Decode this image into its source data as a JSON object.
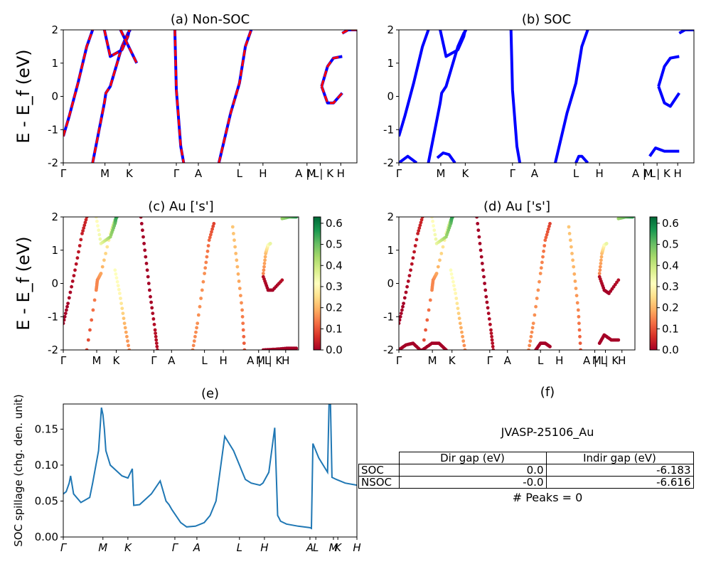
{
  "chart_data": [
    {
      "type": "line",
      "title": "(a) Non-SOC",
      "ylabel": "E - E_f (eV)",
      "ylim": [
        -2,
        2
      ],
      "yticks": [
        "-2",
        "-1",
        "0",
        "1",
        "2"
      ],
      "xticks": [
        "Γ",
        "M",
        "K",
        "Γ",
        "A",
        "L",
        "H",
        "A | L",
        "M | K",
        "H"
      ],
      "series": [
        {
          "style": "solid",
          "color": "#0000ff"
        },
        {
          "style": "dashed",
          "color": "#ff0000"
        }
      ],
      "bands": [
        {
          "x": [
            0,
            0.02,
            0.05,
            0.08,
            0.1
          ],
          "y": [
            -1.2,
            -0.6,
            0.4,
            1.5,
            2.0
          ]
        },
        {
          "x": [
            0.1,
            0.14,
            0.145,
            0.16,
            0.2,
            0.22,
            0.228
          ],
          "y": [
            -2.0,
            -0.2,
            0.1,
            0.3,
            1.5,
            1.9,
            2.0
          ]
        },
        {
          "x": [
            0.14,
            0.16,
            0.2,
            0.22,
            0.225
          ],
          "y": [
            2.0,
            1.2,
            1.4,
            1.8,
            2.0
          ]
        },
        {
          "x": [
            0.195,
            0.25
          ],
          "y": [
            2.0,
            1.0
          ]
        },
        {
          "x": [
            0.38,
            0.385,
            0.4,
            0.41
          ],
          "y": [
            2.0,
            0.2,
            -1.5,
            -2.0
          ]
        },
        {
          "x": [
            0.53,
            0.57,
            0.6,
            0.62,
            0.64
          ],
          "y": [
            -2.0,
            -0.5,
            0.4,
            1.5,
            2.0
          ]
        },
        {
          "x": [
            0.88,
            0.9,
            0.92,
            0.95
          ],
          "y": [
            0.3,
            0.9,
            1.15,
            1.2
          ]
        },
        {
          "x": [
            0.88,
            0.9,
            0.92,
            0.95
          ],
          "y": [
            0.3,
            -0.2,
            -0.2,
            0.1
          ]
        },
        {
          "x": [
            0.95,
            0.97,
            1.0
          ],
          "y": [
            1.9,
            2.0,
            2.0
          ]
        }
      ]
    },
    {
      "type": "line",
      "title": "(b) SOC",
      "ylim": [
        -2,
        2
      ],
      "yticks": [
        "-2",
        "-1",
        "0",
        "1",
        "2"
      ],
      "xticks": [
        "Γ",
        "M",
        "K",
        "Γ",
        "A",
        "L",
        "H",
        "A | L",
        "M | K",
        "H"
      ],
      "series": [
        {
          "style": "solid",
          "color": "#0000ff"
        }
      ],
      "bands": [
        {
          "x": [
            0,
            0.02,
            0.05,
            0.08,
            0.1
          ],
          "y": [
            -1.2,
            -0.6,
            0.4,
            1.5,
            2.0
          ]
        },
        {
          "x": [
            0.1,
            0.14,
            0.145,
            0.16,
            0.2,
            0.22,
            0.228
          ],
          "y": [
            -2.0,
            -0.2,
            0.1,
            0.3,
            1.5,
            1.9,
            2.0
          ]
        },
        {
          "x": [
            0.14,
            0.16,
            0.2,
            0.22,
            0.225
          ],
          "y": [
            2.0,
            1.2,
            1.4,
            1.8,
            2.0
          ]
        },
        {
          "x": [
            0.38,
            0.385,
            0.4,
            0.41
          ],
          "y": [
            2.0,
            0.2,
            -1.5,
            -2.0
          ]
        },
        {
          "x": [
            0.53,
            0.57,
            0.6,
            0.62,
            0.64
          ],
          "y": [
            -2.0,
            -0.5,
            0.4,
            1.5,
            2.0
          ]
        },
        {
          "x": [
            0.88,
            0.9,
            0.92,
            0.95
          ],
          "y": [
            0.3,
            0.9,
            1.15,
            1.2
          ]
        },
        {
          "x": [
            0.88,
            0.9,
            0.92,
            0.95
          ],
          "y": [
            0.3,
            -0.2,
            -0.3,
            0.1
          ]
        },
        {
          "x": [
            0.95,
            0.97,
            1.0
          ],
          "y": [
            1.9,
            2.0,
            2.0
          ]
        },
        {
          "x": [
            0.13,
            0.15,
            0.17,
            0.19
          ],
          "y": [
            -1.85,
            -1.7,
            -1.75,
            -2.0
          ]
        },
        {
          "x": [
            0.0,
            0.03,
            0.06
          ],
          "y": [
            -2.0,
            -1.8,
            -2.0
          ]
        },
        {
          "x": [
            0.6,
            0.61,
            0.62,
            0.64
          ],
          "y": [
            -2.0,
            -1.8,
            -1.8,
            -2.0
          ]
        },
        {
          "x": [
            0.85,
            0.87,
            0.9,
            0.95
          ],
          "y": [
            -1.8,
            -1.55,
            -1.65,
            -1.65
          ]
        }
      ]
    },
    {
      "type": "scatter",
      "title": "(c)  Au ['s']",
      "ylabel": "E - E_f (eV)",
      "ylim": [
        -2,
        2
      ],
      "yticks": [
        "-2",
        "-1",
        "0",
        "1",
        "2"
      ],
      "xticks": [
        "Γ",
        "M",
        "K",
        "Γ",
        "A",
        "L",
        "H",
        "A | L",
        "M | K",
        "H"
      ],
      "colorbar": {
        "min": 0.0,
        "max": 0.63,
        "ticks": [
          "0.0",
          "0.1",
          "0.2",
          "0.3",
          "0.4",
          "0.5",
          "0.6"
        ],
        "colormap": "RdYlGn"
      },
      "bands": [
        {
          "x": [
            0,
            0.02,
            0.05,
            0.08,
            0.1
          ],
          "y": [
            -1.2,
            -0.6,
            0.4,
            1.5,
            2.0
          ],
          "w": [
            0.0,
            0.0,
            0.02,
            0.04,
            0.05
          ]
        },
        {
          "x": [
            0.1,
            0.14,
            0.145,
            0.16,
            0.2,
            0.22,
            0.228
          ],
          "y": [
            -2.0,
            -0.2,
            0.1,
            0.3,
            1.5,
            1.9,
            2.0
          ],
          "w": [
            0.08,
            0.15,
            0.15,
            0.18,
            0.3,
            0.45,
            0.5
          ]
        },
        {
          "x": [
            0.14,
            0.16,
            0.2,
            0.22,
            0.225
          ],
          "y": [
            2.0,
            1.2,
            1.4,
            1.8,
            2.0
          ],
          "w": [
            0.3,
            0.35,
            0.45,
            0.5,
            0.55
          ]
        },
        {
          "x": [
            0.22,
            0.24,
            0.26,
            0.28
          ],
          "y": [
            0.4,
            -0.3,
            -1.2,
            -2.0
          ],
          "w": [
            0.32,
            0.3,
            0.2,
            0.15
          ]
        },
        {
          "x": [
            0.33,
            0.35,
            0.37,
            0.39,
            0.4
          ],
          "y": [
            2.0,
            0.8,
            -0.4,
            -1.4,
            -2.0
          ],
          "w": [
            0.0,
            0.0,
            0.0,
            0.02,
            0.02
          ]
        },
        {
          "x": [
            0.55,
            0.57,
            0.6,
            0.62,
            0.64
          ],
          "y": [
            -2.0,
            -1.2,
            0.3,
            1.3,
            1.8
          ],
          "w": [
            0.15,
            0.16,
            0.16,
            0.12,
            0.08
          ]
        },
        {
          "x": [
            0.72,
            0.74,
            0.76,
            0.77
          ],
          "y": [
            1.7,
            0.5,
            -0.8,
            -2.0
          ],
          "w": [
            0.22,
            0.2,
            0.15,
            0.1
          ]
        },
        {
          "x": [
            0.85,
            0.86,
            0.87,
            0.88
          ],
          "y": [
            0.3,
            0.9,
            1.15,
            1.2
          ],
          "w": [
            0.15,
            0.2,
            0.3,
            0.35
          ]
        },
        {
          "x": [
            0.85,
            0.87,
            0.89,
            0.93
          ],
          "y": [
            0.2,
            -0.2,
            -0.2,
            0.1
          ],
          "w": [
            0.02,
            0.0,
            0.0,
            0.02
          ]
        },
        {
          "x": [
            0.85,
            0.9,
            0.95,
            0.99
          ],
          "y": [
            -2.0,
            -1.98,
            -1.95,
            -1.95
          ],
          "w": [
            0.0,
            0.0,
            0.0,
            0.0
          ]
        },
        {
          "x": [
            0.93,
            0.96,
            0.99
          ],
          "y": [
            1.95,
            2.0,
            2.0
          ],
          "w": [
            0.45,
            0.5,
            0.55
          ]
        }
      ]
    },
    {
      "type": "scatter",
      "title": "(d) Au ['s']",
      "ylim": [
        -2,
        2
      ],
      "yticks": [
        "-2",
        "-1",
        "0",
        "1",
        "2"
      ],
      "xticks": [
        "Γ",
        "M",
        "K",
        "Γ",
        "A",
        "L",
        "H",
        "A | L",
        "M | K",
        "H"
      ],
      "colorbar": {
        "min": 0.0,
        "max": 0.63,
        "ticks": [
          "0.0",
          "0.1",
          "0.2",
          "0.3",
          "0.4",
          "0.5",
          "0.6"
        ],
        "colormap": "RdYlGn"
      },
      "bands": [
        {
          "x": [
            0,
            0.02,
            0.05,
            0.08,
            0.1
          ],
          "y": [
            -1.2,
            -0.6,
            0.4,
            1.5,
            2.0
          ],
          "w": [
            0.0,
            0.0,
            0.02,
            0.04,
            0.05
          ]
        },
        {
          "x": [
            0.1,
            0.14,
            0.145,
            0.16,
            0.2,
            0.22,
            0.228
          ],
          "y": [
            -2.0,
            -0.2,
            0.1,
            0.3,
            1.5,
            1.9,
            2.0
          ],
          "w": [
            0.08,
            0.15,
            0.15,
            0.18,
            0.3,
            0.45,
            0.5
          ]
        },
        {
          "x": [
            0.14,
            0.16,
            0.2,
            0.22,
            0.225
          ],
          "y": [
            2.0,
            1.2,
            1.4,
            1.8,
            2.0
          ],
          "w": [
            0.3,
            0.35,
            0.45,
            0.5,
            0.55
          ]
        },
        {
          "x": [
            0.22,
            0.24,
            0.26,
            0.28
          ],
          "y": [
            0.4,
            -0.3,
            -1.2,
            -2.0
          ],
          "w": [
            0.32,
            0.3,
            0.2,
            0.15
          ]
        },
        {
          "x": [
            0.33,
            0.35,
            0.37,
            0.39,
            0.4
          ],
          "y": [
            2.0,
            0.8,
            -0.4,
            -1.4,
            -2.0
          ],
          "w": [
            0.0,
            0.0,
            0.0,
            0.02,
            0.02
          ]
        },
        {
          "x": [
            0.55,
            0.57,
            0.6,
            0.62,
            0.64
          ],
          "y": [
            -2.0,
            -1.2,
            0.3,
            1.3,
            1.8
          ],
          "w": [
            0.15,
            0.16,
            0.16,
            0.12,
            0.08
          ]
        },
        {
          "x": [
            0.72,
            0.74,
            0.76,
            0.77
          ],
          "y": [
            1.7,
            0.5,
            -0.8,
            -2.0
          ],
          "w": [
            0.22,
            0.2,
            0.15,
            0.1
          ]
        },
        {
          "x": [
            0.85,
            0.86,
            0.87,
            0.88
          ],
          "y": [
            0.3,
            0.9,
            1.15,
            1.2
          ],
          "w": [
            0.15,
            0.2,
            0.3,
            0.35
          ]
        },
        {
          "x": [
            0.85,
            0.87,
            0.89,
            0.93
          ],
          "y": [
            0.2,
            -0.2,
            -0.3,
            0.1
          ],
          "w": [
            0.02,
            0.0,
            0.0,
            0.02
          ]
        },
        {
          "x": [
            0.93,
            0.96,
            0.99
          ],
          "y": [
            1.95,
            2.0,
            2.0
          ],
          "w": [
            0.45,
            0.5,
            0.55
          ]
        },
        {
          "x": [
            0.0,
            0.03,
            0.06,
            0.09
          ],
          "y": [
            -2.0,
            -1.85,
            -1.8,
            -2.0
          ],
          "w": [
            0.0,
            0.0,
            0.0,
            0.0
          ]
        },
        {
          "x": [
            0.1,
            0.14,
            0.17,
            0.2
          ],
          "y": [
            -2.0,
            -1.8,
            -1.8,
            -2.0
          ],
          "w": [
            0.0,
            0.0,
            0.0,
            0.0
          ]
        },
        {
          "x": [
            0.58,
            0.6,
            0.62,
            0.64
          ],
          "y": [
            -2.0,
            -1.8,
            -1.8,
            -1.9
          ],
          "w": [
            0.0,
            0.0,
            0.0,
            0.0
          ]
        },
        {
          "x": [
            0.85,
            0.87,
            0.9,
            0.93
          ],
          "y": [
            -1.8,
            -1.55,
            -1.7,
            -1.7
          ],
          "w": [
            0.0,
            0.0,
            0.0,
            0.0
          ]
        }
      ]
    },
    {
      "type": "line",
      "title": "(e)",
      "ylabel": "SOC spillage (chg. den. unit)",
      "ylim": [
        0,
        0.185
      ],
      "yticks": [
        "0.00",
        "0.05",
        "0.10",
        "0.15"
      ],
      "xticks": [
        "Γ",
        "M",
        "K",
        "Γ",
        "A",
        "L",
        "H",
        "A",
        "L",
        "M",
        "K",
        "H"
      ],
      "series": [
        {
          "color": "#1f77b4",
          "x": [
            0,
            0.01,
            0.02,
            0.025,
            0.035,
            0.06,
            0.09,
            0.1,
            0.12,
            0.13,
            0.135,
            0.14,
            0.145,
            0.16,
            0.2,
            0.22,
            0.235,
            0.24,
            0.26,
            0.3,
            0.33,
            0.35,
            0.36,
            0.37,
            0.4,
            0.42,
            0.45,
            0.48,
            0.5,
            0.52,
            0.55,
            0.58,
            0.6,
            0.61,
            0.62,
            0.64,
            0.67,
            0.68,
            0.7,
            0.72,
            0.73,
            0.735,
            0.74,
            0.76,
            0.8,
            0.84,
            0.845,
            0.85,
            0.87,
            0.9,
            0.905,
            0.91,
            0.915,
            0.93,
            0.96,
            1.0
          ],
          "y": [
            0.06,
            0.063,
            0.075,
            0.085,
            0.06,
            0.048,
            0.055,
            0.075,
            0.12,
            0.18,
            0.17,
            0.15,
            0.12,
            0.1,
            0.085,
            0.082,
            0.095,
            0.044,
            0.045,
            0.06,
            0.078,
            0.05,
            0.045,
            0.038,
            0.02,
            0.014,
            0.015,
            0.02,
            0.03,
            0.05,
            0.14,
            0.12,
            0.1,
            0.09,
            0.08,
            0.075,
            0.072,
            0.075,
            0.09,
            0.152,
            0.03,
            0.026,
            0.022,
            0.018,
            0.015,
            0.013,
            0.012,
            0.13,
            0.11,
            0.09,
            0.185,
            0.185,
            0.083,
            0.08,
            0.075,
            0.072
          ]
        }
      ]
    }
  ],
  "panel_f": {
    "title": "(f)",
    "material": "JVASP-25106_Au",
    "table": {
      "headers": [
        "Dir gap (eV)",
        "Indir gap (eV)"
      ],
      "rows": [
        {
          "label": "SOC",
          "dir": "0.0",
          "indir": "-6.183"
        },
        {
          "label": "NSOC",
          "dir": "-0.0",
          "indir": "-6.616"
        }
      ]
    },
    "peaks": "# Peaks = 0"
  }
}
